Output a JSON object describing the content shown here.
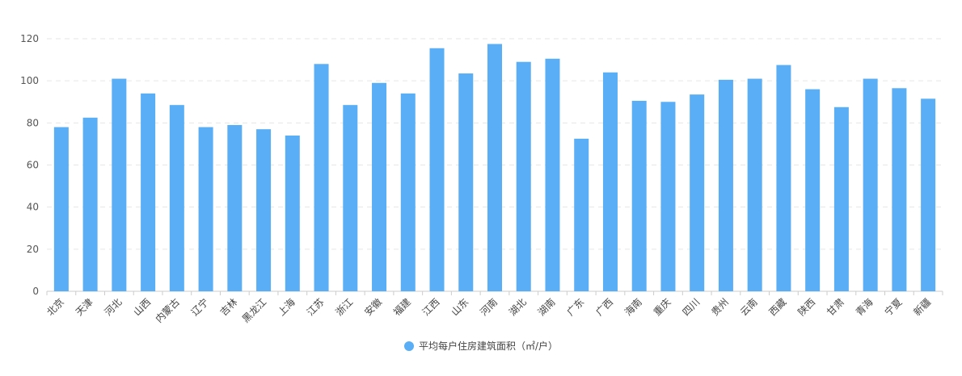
{
  "chart_data": {
    "type": "bar",
    "categories": [
      "北京",
      "天津",
      "河北",
      "山西",
      "内蒙古",
      "辽宁",
      "吉林",
      "黑龙江",
      "上海",
      "江苏",
      "浙江",
      "安徽",
      "福建",
      "江西",
      "山东",
      "河南",
      "湖北",
      "湖南",
      "广东",
      "广西",
      "海南",
      "重庆",
      "四川",
      "贵州",
      "云南",
      "西藏",
      "陕西",
      "甘肃",
      "青海",
      "宁夏",
      "新疆"
    ],
    "series": [
      {
        "name": "平均每户住房建筑面积（㎡/户）",
        "color": "#5aaef5",
        "values": [
          78,
          82.5,
          101,
          94,
          88.5,
          78,
          79,
          77,
          74,
          108,
          88.5,
          99,
          94,
          115.5,
          103.5,
          117.5,
          109,
          110.5,
          72.5,
          104,
          90.5,
          90,
          93.5,
          100.5,
          101,
          107.5,
          96,
          87.5,
          101,
          96.5,
          91.5
        ]
      }
    ],
    "yticks": [
      0,
      20,
      40,
      60,
      80,
      100,
      120
    ],
    "ylim": [
      0,
      120
    ],
    "grid": true,
    "legend_position": "bottom-center"
  }
}
